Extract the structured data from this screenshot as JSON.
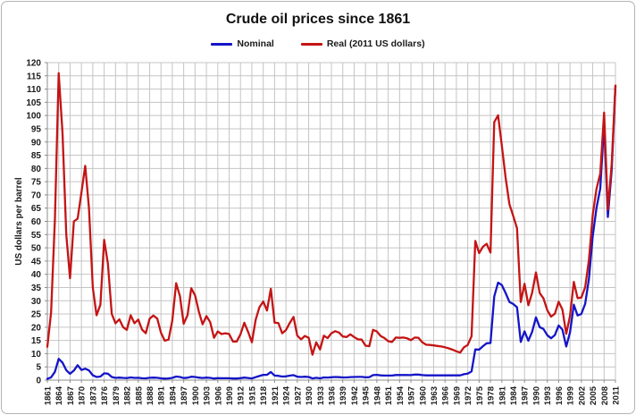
{
  "title": "Crude oil prices since 1861",
  "legend": {
    "items": [
      {
        "label": "Nominal"
      },
      {
        "label": "Real (2011 US dollars)"
      }
    ]
  },
  "y_axis": {
    "title": "US dollars per barrel",
    "min": 0,
    "max": 120,
    "step": 5,
    "tick_labels": [
      "0",
      "5",
      "10",
      "15",
      "20",
      "25",
      "30",
      "35",
      "40",
      "45",
      "50",
      "55",
      "60",
      "65",
      "70",
      "75",
      "80",
      "85",
      "90",
      "95",
      "100",
      "105",
      "110",
      "115",
      "120"
    ]
  },
  "x_axis": {
    "start_year": 1861,
    "end_year": 2011,
    "tick_interval": 3,
    "tick_labels": [
      "1861",
      "1864",
      "1867",
      "1870",
      "1873",
      "1876",
      "1879",
      "1882",
      "1885",
      "1888",
      "1891",
      "1894",
      "1897",
      "1900",
      "1903",
      "1906",
      "1909",
      "1912",
      "1915",
      "1918",
      "1921",
      "1924",
      "1927",
      "1930",
      "1933",
      "1936",
      "1939",
      "1942",
      "1945",
      "1948",
      "1951",
      "1954",
      "1957",
      "1960",
      "1963",
      "1966",
      "1969",
      "1972",
      "1975",
      "1978",
      "1981",
      "1984",
      "1987",
      "1990",
      "1993",
      "1996",
      "1999",
      "2002",
      "2005",
      "2008",
      "2011"
    ]
  },
  "colors": {
    "nominal_line": "#1414c8",
    "real_line": "#c41414",
    "gridline": "#c4c4c4",
    "axis_line": "#8c8c8c",
    "tick_text": "#1a1a1a",
    "frame_border": "#b4b4b4",
    "background": "#ffffff"
  },
  "chart_data": {
    "type": "line",
    "title": "Crude oil prices since 1861",
    "xlabel": "",
    "ylabel": "US dollars per barrel",
    "ylim": [
      0,
      120
    ],
    "y_tick_step": 5,
    "x_start": 1861,
    "x_end": 2011,
    "x_step": 1,
    "x_tick_interval": 3,
    "grid": true,
    "legend_position": "top-center",
    "series": [
      {
        "name": "Nominal",
        "color": "#1414c8",
        "values": [
          0.49,
          1.05,
          3.15,
          8.06,
          6.59,
          3.74,
          2.41,
          3.63,
          5.64,
          3.86,
          4.34,
          3.64,
          1.83,
          1.17,
          1.35,
          2.56,
          2.42,
          1.19,
          0.86,
          0.95,
          0.86,
          0.78,
          1.0,
          0.84,
          0.88,
          0.71,
          0.67,
          0.88,
          0.94,
          0.87,
          0.67,
          0.56,
          0.64,
          0.84,
          1.36,
          1.18,
          0.79,
          0.91,
          1.29,
          1.19,
          0.96,
          0.8,
          0.94,
          0.86,
          0.62,
          0.73,
          0.72,
          0.72,
          0.7,
          0.61,
          0.61,
          0.74,
          0.95,
          0.81,
          0.64,
          1.1,
          1.56,
          1.98,
          2.01,
          3.07,
          1.73,
          1.61,
          1.34,
          1.43,
          1.68,
          1.88,
          1.3,
          1.17,
          1.27,
          1.19,
          0.65,
          0.87,
          0.67,
          1.0,
          0.97,
          1.09,
          1.18,
          1.13,
          1.02,
          1.02,
          1.14,
          1.19,
          1.2,
          1.21,
          1.05,
          1.12,
          1.9,
          1.99,
          1.78,
          1.71,
          1.71,
          1.71,
          1.93,
          1.93,
          1.93,
          1.93,
          1.9,
          2.08,
          2.08,
          1.9,
          1.8,
          1.8,
          1.8,
          1.8,
          1.8,
          1.8,
          1.8,
          1.8,
          1.8,
          1.8,
          2.24,
          2.48,
          3.29,
          11.58,
          11.53,
          12.8,
          13.92,
          14.02,
          31.61,
          36.83,
          35.93,
          32.97,
          29.55,
          28.78,
          27.56,
          14.43,
          18.44,
          14.92,
          18.23,
          23.73,
          20.0,
          19.32,
          16.97,
          15.82,
          17.02,
          20.67,
          19.09,
          12.72,
          17.97,
          28.5,
          24.44,
          25.02,
          28.83,
          38.27,
          54.52,
          65.14,
          72.39,
          97.26,
          61.67,
          79.5,
          111.26
        ]
      },
      {
        "name": "Real (2011 US dollars)",
        "color": "#c41414",
        "values": [
          12.6,
          25.6,
          61.0,
          116.0,
          93.3,
          55.0,
          38.5,
          60.0,
          61.0,
          71.0,
          81.0,
          65.0,
          35.0,
          24.5,
          28.5,
          53.0,
          44.0,
          25.0,
          21.5,
          23.0,
          20.0,
          19.0,
          24.5,
          21.5,
          22.9,
          19.1,
          17.7,
          23.2,
          24.4,
          23.3,
          17.9,
          14.9,
          15.3,
          22.5,
          36.6,
          31.8,
          21.3,
          24.5,
          34.7,
          32.0,
          25.9,
          21.1,
          24.2,
          21.9,
          16.0,
          18.4,
          17.4,
          17.7,
          17.4,
          14.6,
          14.6,
          17.3,
          21.7,
          18.3,
          14.3,
          22.8,
          27.5,
          29.7,
          26.3,
          34.5,
          21.7,
          21.6,
          17.7,
          18.9,
          21.6,
          23.9,
          16.8,
          15.4,
          16.7,
          16.0,
          9.6,
          14.3,
          11.6,
          16.8,
          15.9,
          17.7,
          18.5,
          18.0,
          16.5,
          16.3,
          17.3,
          16.3,
          15.4,
          15.3,
          13.0,
          12.8,
          19.0,
          18.4,
          16.7,
          15.9,
          14.7,
          14.4,
          16.1,
          16.0,
          16.1,
          15.8,
          15.1,
          16.1,
          16.0,
          14.3,
          13.4,
          13.3,
          13.1,
          12.9,
          12.7,
          12.4,
          12.0,
          11.5,
          10.9,
          10.4,
          12.4,
          13.3,
          16.6,
          52.6,
          48.0,
          50.4,
          51.5,
          48.2,
          97.5,
          100.1,
          88.6,
          76.6,
          66.5,
          62.1,
          57.4,
          29.5,
          36.4,
          28.3,
          33.0,
          40.7,
          32.9,
          30.9,
          26.4,
          24.0,
          25.1,
          29.6,
          26.7,
          17.5,
          24.2,
          37.1,
          31.0,
          31.2,
          35.1,
          45.4,
          62.5,
          72.3,
          78.1,
          101.1,
          64.4,
          81.7,
          111.3
        ]
      }
    ]
  }
}
